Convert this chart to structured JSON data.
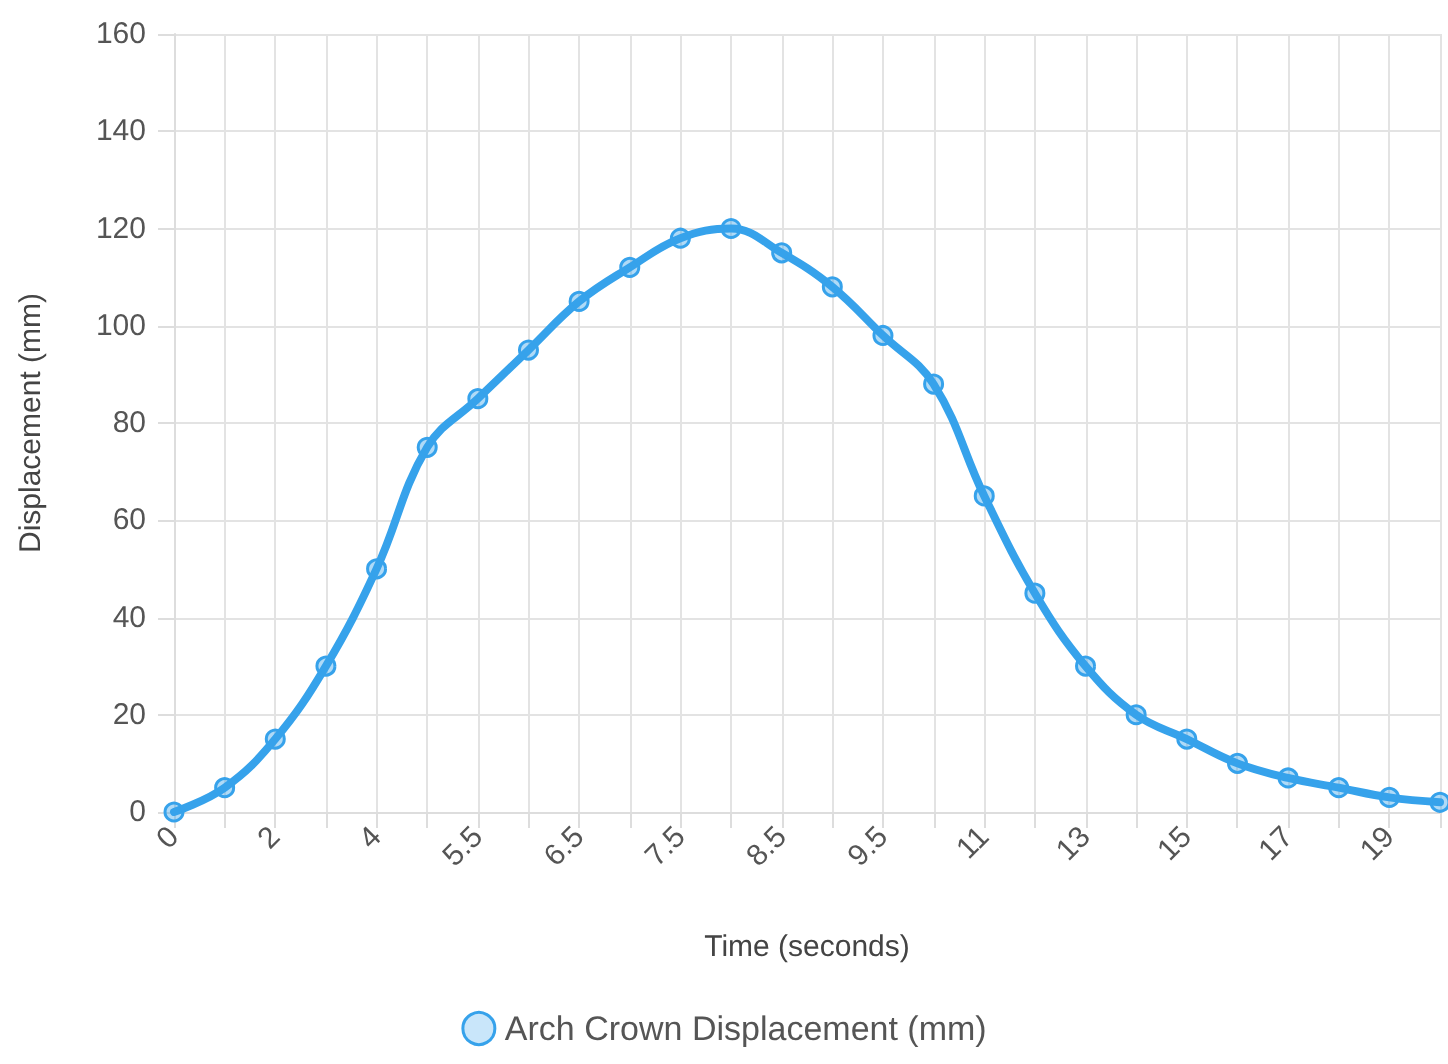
{
  "chart_data": {
    "type": "line",
    "xlabel": "Time (seconds)",
    "ylabel": "Displacement (mm)",
    "categories": [
      "0",
      null,
      "2",
      null,
      "4",
      null,
      "5.5",
      null,
      "6.5",
      null,
      "7.5",
      null,
      "8.5",
      null,
      "9.5",
      null,
      "11",
      null,
      "13",
      null,
      "15",
      null,
      "17",
      null,
      "19",
      null
    ],
    "series": [
      {
        "name": "Arch Crown Displacement (mm)",
        "color": "#36a2eb",
        "values": [
          0,
          5,
          15,
          30,
          50,
          75,
          85,
          95,
          105,
          112,
          118,
          120,
          115,
          108,
          98,
          88,
          65,
          45,
          30,
          20,
          15,
          10,
          7,
          5,
          3,
          2
        ]
      }
    ],
    "ylim": [
      0,
      160
    ],
    "yticks": [
      0,
      20,
      40,
      60,
      80,
      100,
      120,
      140,
      160
    ],
    "grid": true,
    "legend": "bottom",
    "marker": "circle",
    "line_style": "solid"
  }
}
